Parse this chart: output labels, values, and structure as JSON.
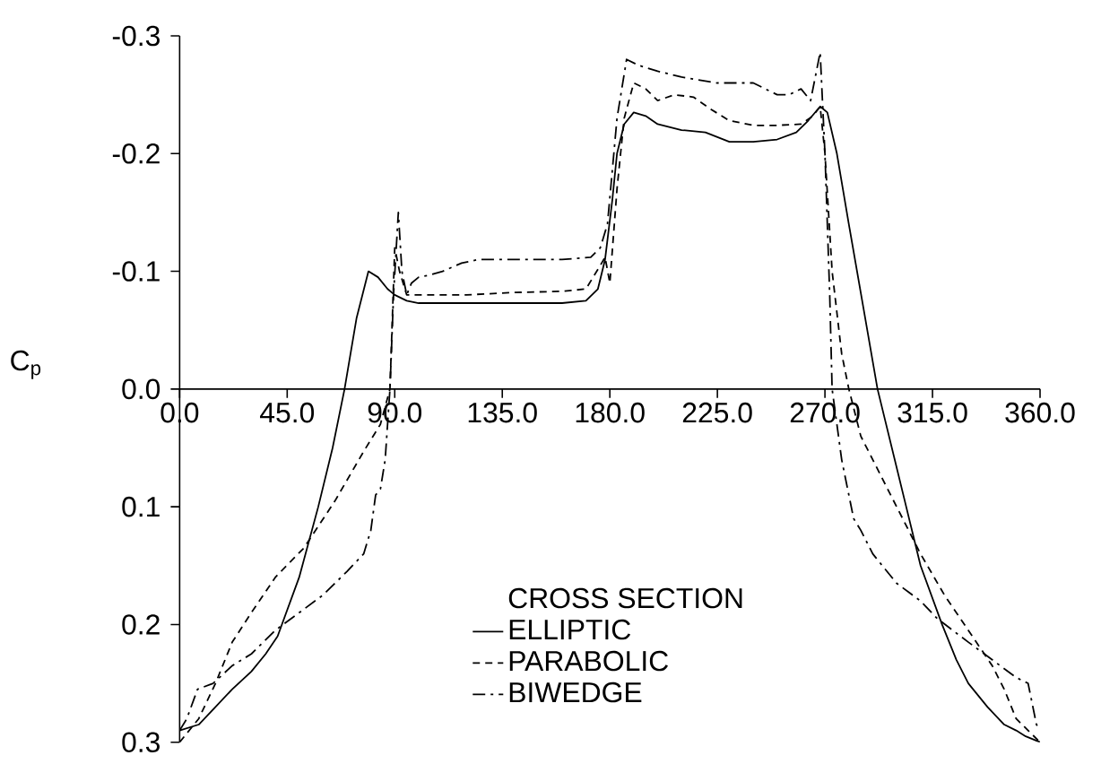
{
  "chart_data": {
    "type": "line",
    "ylabel": "C$_{p}$",
    "legend_title": "CROSS SECTION",
    "legend": "bottom",
    "xlim": [
      0,
      360
    ],
    "ylim": [
      0.3,
      -0.3
    ],
    "xticks": [
      {
        "value": 0,
        "label": "0.0"
      },
      {
        "value": 45,
        "label": "45.0"
      },
      {
        "value": 90,
        "label": "90.0"
      },
      {
        "value": 135,
        "label": "135.0"
      },
      {
        "value": 180,
        "label": "180.0"
      },
      {
        "value": 225,
        "label": "225.0"
      },
      {
        "value": 270,
        "label": "270.0"
      },
      {
        "value": 315,
        "label": "315.0"
      },
      {
        "value": 360,
        "label": "360.0"
      }
    ],
    "yticks": [
      {
        "value": -0.3,
        "label": "-0.3"
      },
      {
        "value": -0.2,
        "label": "-0.2"
      },
      {
        "value": -0.1,
        "label": "-0.1"
      },
      {
        "value": 0,
        "label": "0.0"
      },
      {
        "value": 0.1,
        "label": "0.1"
      },
      {
        "value": 0.2,
        "label": "0.2"
      },
      {
        "value": 0.3,
        "label": "0.3"
      }
    ],
    "series": [
      {
        "name": "ELLIPTIC",
        "color": "#000000",
        "line_style": "solid",
        "x": [
          0,
          8,
          15,
          22,
          30,
          36,
          41,
          50,
          58,
          64,
          69,
          74,
          79,
          83,
          87,
          90,
          95,
          100,
          120,
          140,
          160,
          170,
          175,
          178,
          181,
          183,
          186,
          190,
          195,
          200,
          210,
          220,
          230,
          240,
          250,
          258,
          263,
          268,
          271,
          275,
          280,
          286,
          292,
          298,
          304,
          310,
          319,
          325,
          330,
          338,
          345,
          350,
          354,
          360
        ],
        "values": [
          0.29,
          0.285,
          0.27,
          0.255,
          0.24,
          0.225,
          0.21,
          0.16,
          0.1,
          0.05,
          0.0,
          -0.06,
          -0.1,
          -0.095,
          -0.085,
          -0.08,
          -0.075,
          -0.073,
          -0.073,
          -0.073,
          -0.073,
          -0.075,
          -0.085,
          -0.11,
          -0.16,
          -0.2,
          -0.225,
          -0.235,
          -0.232,
          -0.225,
          -0.22,
          -0.218,
          -0.21,
          -0.21,
          -0.212,
          -0.218,
          -0.228,
          -0.24,
          -0.235,
          -0.2,
          -0.14,
          -0.07,
          0.0,
          0.05,
          0.1,
          0.15,
          0.2,
          0.23,
          0.25,
          0.27,
          0.285,
          0.29,
          0.295,
          0.3
        ]
      },
      {
        "name": "PARABOLIC",
        "color": "#000000",
        "line_style": "dashed",
        "x": [
          0,
          8,
          15,
          22,
          30,
          40,
          52,
          65,
          77,
          84,
          88,
          90,
          92,
          95,
          100,
          120,
          140,
          160,
          170,
          176,
          178,
          180,
          183,
          186,
          190,
          195,
          200,
          207,
          215,
          222,
          230,
          240,
          250,
          260,
          265,
          268,
          270,
          273,
          277,
          280,
          285,
          290,
          300,
          310,
          320,
          330,
          340,
          345,
          350,
          355,
          360
        ],
        "values": [
          0.3,
          0.28,
          0.25,
          0.215,
          0.19,
          0.16,
          0.135,
          0.095,
          0.053,
          0.03,
          0.0,
          -0.12,
          -0.1,
          -0.08,
          -0.08,
          -0.08,
          -0.082,
          -0.083,
          -0.085,
          -0.105,
          -0.112,
          -0.09,
          -0.17,
          -0.23,
          -0.26,
          -0.255,
          -0.245,
          -0.25,
          -0.248,
          -0.238,
          -0.228,
          -0.224,
          -0.224,
          -0.225,
          -0.232,
          -0.24,
          -0.2,
          -0.1,
          -0.03,
          0.0,
          0.04,
          0.06,
          0.1,
          0.14,
          0.175,
          0.205,
          0.235,
          0.255,
          0.28,
          0.29,
          0.3
        ]
      },
      {
        "name": "BIWEDGE",
        "color": "#000000",
        "line_style": "dashdot",
        "x": [
          0,
          3,
          7.5,
          14,
          22,
          30,
          40,
          50,
          60,
          70,
          77,
          80,
          82,
          84,
          86,
          88,
          89.5,
          91.5,
          93,
          95,
          97,
          100,
          105,
          110,
          118,
          125,
          140,
          160,
          172,
          176,
          179,
          183,
          187,
          192,
          200,
          210,
          225,
          240,
          250,
          255,
          260,
          264,
          268,
          270,
          272,
          273,
          277,
          282,
          285,
          290,
          300,
          310,
          317,
          330,
          340,
          350,
          355,
          358.5,
          360
        ],
        "values": [
          0.29,
          0.28,
          0.255,
          0.25,
          0.235,
          0.225,
          0.205,
          0.19,
          0.175,
          0.155,
          0.14,
          0.12,
          0.09,
          0.085,
          0.06,
          0.0,
          -0.08,
          -0.15,
          -0.1,
          -0.08,
          -0.09,
          -0.095,
          -0.097,
          -0.1,
          -0.107,
          -0.11,
          -0.11,
          -0.11,
          -0.112,
          -0.12,
          -0.14,
          -0.23,
          -0.28,
          -0.275,
          -0.27,
          -0.265,
          -0.26,
          -0.26,
          -0.25,
          -0.25,
          -0.255,
          -0.245,
          -0.286,
          -0.2,
          -0.08,
          0.0,
          0.06,
          0.11,
          0.12,
          0.14,
          0.165,
          0.18,
          0.195,
          0.215,
          0.23,
          0.245,
          0.25,
          0.285,
          0.29
        ]
      }
    ]
  }
}
